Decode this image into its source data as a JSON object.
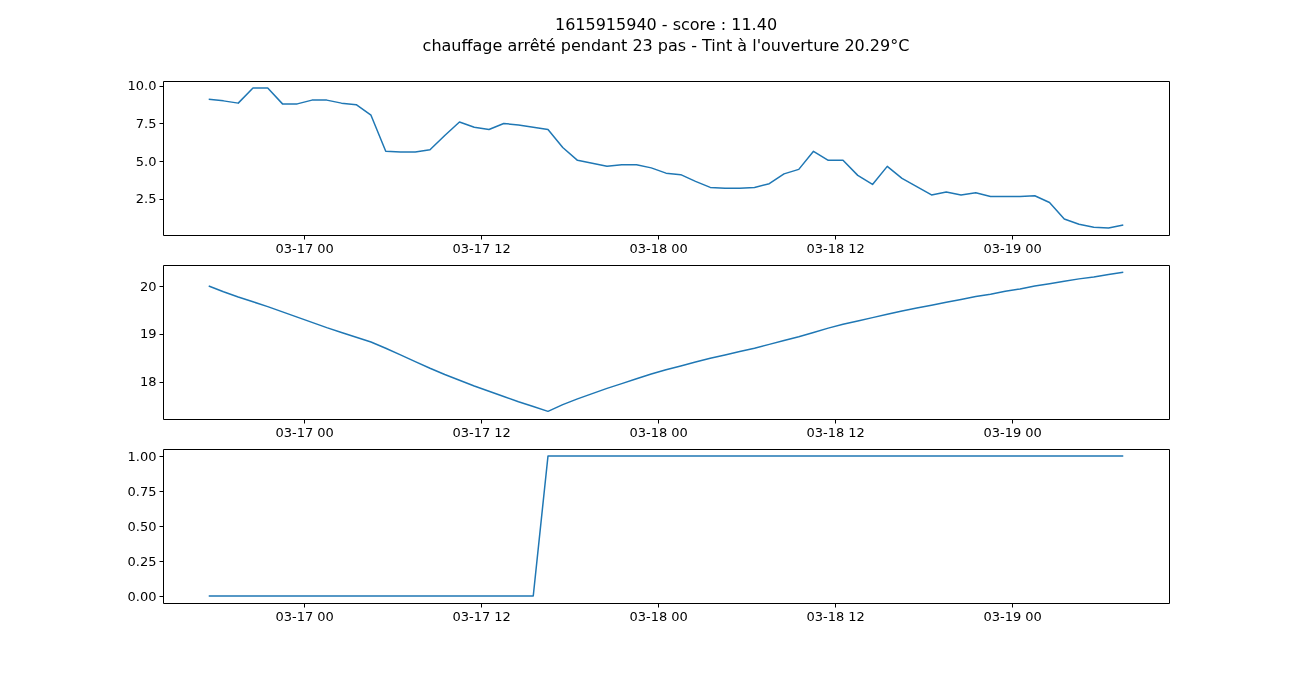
{
  "chart_data": [
    {
      "type": "line",
      "title": "1615915940 - score : 11.40",
      "subtitle": "chauffage arrêté pendant 23 pas - Tint à l'ouverture 20.29°C",
      "x": [
        "--03-16T17:32",
        "--03-16T18:32",
        "--03-16T19:32",
        "--03-16T20:32",
        "--03-16T21:32",
        "--03-16T22:32",
        "--03-16T23:32",
        "--03-17T00:32",
        "--03-17T01:32",
        "--03-17T02:32",
        "--03-17T03:32",
        "--03-17T04:32",
        "--03-17T05:32",
        "--03-17T06:32",
        "--03-17T07:32",
        "--03-17T08:32",
        "--03-17T09:32",
        "--03-17T10:32",
        "--03-17T11:32",
        "--03-17T12:32",
        "--03-17T13:32",
        "--03-17T14:32",
        "--03-17T15:32",
        "--03-17T16:32",
        "--03-17T17:32",
        "--03-17T18:32",
        "--03-17T19:32",
        "--03-17T20:32",
        "--03-17T21:32",
        "--03-17T22:32",
        "--03-17T23:32",
        "--03-18T00:32",
        "--03-18T01:32",
        "--03-18T02:32",
        "--03-18T03:32",
        "--03-18T04:32",
        "--03-18T05:32",
        "--03-18T06:32",
        "--03-18T07:32",
        "--03-18T08:32",
        "--03-18T09:32",
        "--03-18T10:32",
        "--03-18T11:32",
        "--03-18T12:32",
        "--03-18T13:32",
        "--03-18T14:32",
        "--03-18T15:32",
        "--03-18T16:32",
        "--03-18T17:32",
        "--03-18T18:32",
        "--03-18T19:32",
        "--03-18T20:32",
        "--03-18T21:32",
        "--03-18T22:32",
        "--03-18T23:32",
        "--03-19T00:32",
        "--03-19T01:32",
        "--03-19T02:32",
        "--03-19T03:32",
        "--03-19T04:32",
        "--03-19T05:32",
        "--03-19T06:32",
        "--03-19T07:32"
      ],
      "series": [
        {
          "color": "#1f77b4",
          "values": [
            9.1,
            9.0,
            8.85,
            9.85,
            9.85,
            8.8,
            8.8,
            9.05,
            9.05,
            8.85,
            8.75,
            8.05,
            5.65,
            5.6,
            5.6,
            5.75,
            6.7,
            7.6,
            7.25,
            7.1,
            7.5,
            7.4,
            7.25,
            7.1,
            5.9,
            5.05,
            4.85,
            4.65,
            4.75,
            4.75,
            4.55,
            4.2,
            4.1,
            3.65,
            3.25,
            3.2,
            3.2,
            3.25,
            3.5,
            4.15,
            4.45,
            5.65,
            5.05,
            5.05,
            4.05,
            3.45,
            4.65,
            3.85,
            3.3,
            2.75,
            2.95,
            2.75,
            2.9,
            2.65,
            2.65,
            2.65,
            2.7,
            2.25,
            1.15,
            0.8,
            0.6,
            0.55,
            0.75
          ]
        }
      ],
      "xlim": [
        "--03-16T14:26",
        "--03-19T10:38"
      ],
      "xticks": [
        {
          "value": "--03-17T00:00",
          "label": "03-17 00"
        },
        {
          "value": "--03-17T12:00",
          "label": "03-17 12"
        },
        {
          "value": "--03-18T00:00",
          "label": "03-18 00"
        },
        {
          "value": "--03-18T12:00",
          "label": "03-18 12"
        },
        {
          "value": "--03-19T00:00",
          "label": "03-19 00"
        }
      ],
      "ylim": [
        0.09,
        10.32
      ],
      "yticks": [
        {
          "value": 2.5,
          "label": "2.5"
        },
        {
          "value": 5,
          "label": "5.0"
        },
        {
          "value": 7.5,
          "label": "7.5"
        },
        {
          "value": 10,
          "label": "10.0"
        }
      ]
    },
    {
      "type": "line",
      "x": [
        "--03-16T17:32",
        "--03-16T18:32",
        "--03-16T19:32",
        "--03-16T20:32",
        "--03-16T21:32",
        "--03-16T22:32",
        "--03-16T23:32",
        "--03-17T00:32",
        "--03-17T01:32",
        "--03-17T02:32",
        "--03-17T03:32",
        "--03-17T04:32",
        "--03-17T05:32",
        "--03-17T06:32",
        "--03-17T07:32",
        "--03-17T08:32",
        "--03-17T09:32",
        "--03-17T10:32",
        "--03-17T11:32",
        "--03-17T12:32",
        "--03-17T13:32",
        "--03-17T14:32",
        "--03-17T15:32",
        "--03-17T16:32",
        "--03-17T17:32",
        "--03-17T18:32",
        "--03-17T19:32",
        "--03-17T20:32",
        "--03-17T21:32",
        "--03-17T22:32",
        "--03-17T23:32",
        "--03-18T00:32",
        "--03-18T01:32",
        "--03-18T02:32",
        "--03-18T03:32",
        "--03-18T04:32",
        "--03-18T05:32",
        "--03-18T06:32",
        "--03-18T07:32",
        "--03-18T08:32",
        "--03-18T09:32",
        "--03-18T10:32",
        "--03-18T11:32",
        "--03-18T12:32",
        "--03-18T13:32",
        "--03-18T14:32",
        "--03-18T15:32",
        "--03-18T16:32",
        "--03-18T17:32",
        "--03-18T18:32",
        "--03-18T19:32",
        "--03-18T20:32",
        "--03-18T21:32",
        "--03-18T22:32",
        "--03-18T23:32",
        "--03-19T00:32",
        "--03-19T01:32",
        "--03-19T02:32",
        "--03-19T03:32",
        "--03-19T04:32",
        "--03-19T05:32",
        "--03-19T06:32",
        "--03-19T07:32"
      ],
      "series": [
        {
          "color": "#1f77b4",
          "values": [
            20.0,
            19.88,
            19.77,
            19.67,
            19.57,
            19.46,
            19.35,
            19.24,
            19.13,
            19.03,
            18.93,
            18.83,
            18.7,
            18.56,
            18.42,
            18.28,
            18.15,
            18.03,
            17.91,
            17.8,
            17.69,
            17.58,
            17.48,
            17.38,
            17.52,
            17.64,
            17.75,
            17.86,
            17.96,
            18.06,
            18.16,
            18.25,
            18.33,
            18.41,
            18.49,
            18.56,
            18.63,
            18.7,
            18.78,
            18.86,
            18.94,
            19.03,
            19.12,
            19.2,
            19.27,
            19.34,
            19.41,
            19.48,
            19.54,
            19.6,
            19.66,
            19.72,
            19.78,
            19.83,
            19.89,
            19.94,
            20.0,
            20.05,
            20.1,
            20.15,
            20.19,
            20.24,
            20.29
          ]
        }
      ],
      "xlim": [
        "--03-16T14:26",
        "--03-19T10:38"
      ],
      "xticks": [
        {
          "value": "--03-17T00:00",
          "label": "03-17 00"
        },
        {
          "value": "--03-17T12:00",
          "label": "03-17 12"
        },
        {
          "value": "--03-18T00:00",
          "label": "03-18 00"
        },
        {
          "value": "--03-18T12:00",
          "label": "03-18 12"
        },
        {
          "value": "--03-19T00:00",
          "label": "03-19 00"
        }
      ],
      "ylim": [
        17.22,
        20.44
      ],
      "yticks": [
        18,
        19,
        20
      ]
    },
    {
      "type": "line",
      "x": [
        "--03-16T17:32",
        "--03-16T18:32",
        "--03-16T19:32",
        "--03-16T20:32",
        "--03-16T21:32",
        "--03-16T22:32",
        "--03-16T23:32",
        "--03-17T00:32",
        "--03-17T01:32",
        "--03-17T02:32",
        "--03-17T03:32",
        "--03-17T04:32",
        "--03-17T05:32",
        "--03-17T06:32",
        "--03-17T07:32",
        "--03-17T08:32",
        "--03-17T09:32",
        "--03-17T10:32",
        "--03-17T11:32",
        "--03-17T12:32",
        "--03-17T13:32",
        "--03-17T14:32",
        "--03-17T15:32",
        "--03-17T16:32",
        "--03-17T17:32",
        "--03-17T18:32",
        "--03-17T19:32",
        "--03-17T20:32",
        "--03-17T21:32",
        "--03-17T22:32",
        "--03-17T23:32",
        "--03-18T00:32",
        "--03-18T01:32",
        "--03-18T02:32",
        "--03-18T03:32",
        "--03-18T04:32",
        "--03-18T05:32",
        "--03-18T06:32",
        "--03-18T07:32",
        "--03-18T08:32",
        "--03-18T09:32",
        "--03-18T10:32",
        "--03-18T11:32",
        "--03-18T12:32",
        "--03-18T13:32",
        "--03-18T14:32",
        "--03-18T15:32",
        "--03-18T16:32",
        "--03-18T17:32",
        "--03-18T18:32",
        "--03-18T19:32",
        "--03-18T20:32",
        "--03-18T21:32",
        "--03-18T22:32",
        "--03-18T23:32",
        "--03-19T00:32",
        "--03-19T01:32",
        "--03-19T02:32",
        "--03-19T03:32",
        "--03-19T04:32",
        "--03-19T05:32",
        "--03-19T06:32",
        "--03-19T07:32"
      ],
      "series": [
        {
          "color": "#1f77b4",
          "values": [
            0,
            0,
            0,
            0,
            0,
            0,
            0,
            0,
            0,
            0,
            0,
            0,
            0,
            0,
            0,
            0,
            0,
            0,
            0,
            0,
            0,
            0,
            0,
            1,
            1,
            1,
            1,
            1,
            1,
            1,
            1,
            1,
            1,
            1,
            1,
            1,
            1,
            1,
            1,
            1,
            1,
            1,
            1,
            1,
            1,
            1,
            1,
            1,
            1,
            1,
            1,
            1,
            1,
            1,
            1,
            1,
            1,
            1,
            1,
            1,
            1,
            1,
            1
          ]
        }
      ],
      "xlim": [
        "--03-16T14:26",
        "--03-19T10:38"
      ],
      "xticks": [
        {
          "value": "--03-17T00:00",
          "label": "03-17 00"
        },
        {
          "value": "--03-17T12:00",
          "label": "03-17 12"
        },
        {
          "value": "--03-18T00:00",
          "label": "03-18 00"
        },
        {
          "value": "--03-18T12:00",
          "label": "03-18 12"
        },
        {
          "value": "--03-19T00:00",
          "label": "03-19 00"
        }
      ],
      "ylim": [
        -0.05,
        1.05
      ],
      "yticks": [
        {
          "value": 0,
          "label": "0.00"
        },
        {
          "value": 0.25,
          "label": "0.25"
        },
        {
          "value": 0.5,
          "label": "0.50"
        },
        {
          "value": 0.75,
          "label": "0.75"
        },
        {
          "value": 1,
          "label": "1.00"
        }
      ]
    }
  ]
}
